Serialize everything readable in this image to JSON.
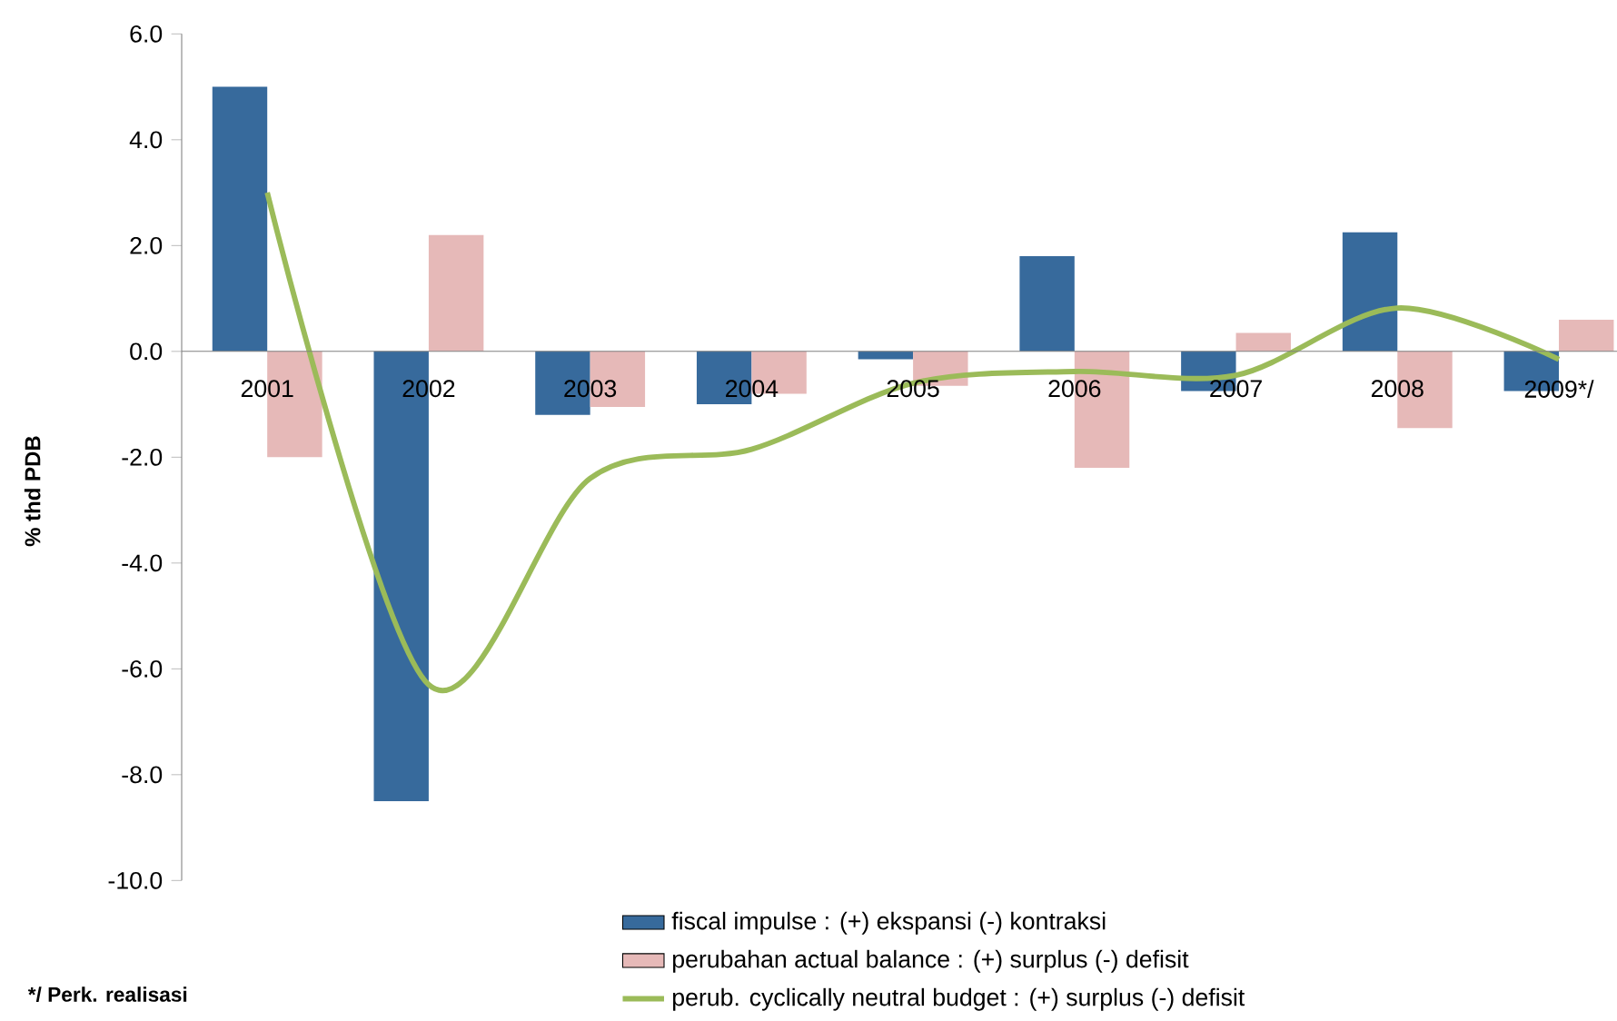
{
  "chart_data": {
    "type": "bar",
    "categories": [
      "2001",
      "2002",
      "2003",
      "2004",
      "2005",
      "2006",
      "2007",
      "2008",
      "2009*/"
    ],
    "series": [
      {
        "name": "fiscal impulse : (+) ekspansi (-) kontraksi",
        "color": "#376a9c",
        "values": [
          5.0,
          -8.5,
          -1.2,
          -1.0,
          -0.15,
          1.8,
          -0.75,
          2.25,
          -0.75
        ]
      },
      {
        "name": "perubahan actual balance : (+) surplus (-) defisit",
        "color": "#e6b9b8",
        "values": [
          -2.0,
          2.2,
          -1.05,
          -0.8,
          -0.65,
          -2.2,
          0.35,
          -1.45,
          0.6
        ]
      },
      {
        "name": "perub. cyclically neutral  budget : (+) surplus (-) defisit",
        "type": "line",
        "color": "#9bbb59",
        "values": [
          3.0,
          -6.3,
          -2.4,
          -1.85,
          -0.6,
          -0.38,
          -0.45,
          0.82,
          -0.15
        ]
      }
    ],
    "ylabel": "% thd PDB",
    "ylim": [
      -10,
      6
    ],
    "yticks": [
      {
        "value": -10,
        "label": "-10.0"
      },
      {
        "value": -8,
        "label": "-8.0"
      },
      {
        "value": -6,
        "label": "-6.0"
      },
      {
        "value": -4,
        "label": "-4.0"
      },
      {
        "value": -2,
        "label": "-2.0"
      },
      {
        "value": 0,
        "label": "0.0"
      },
      {
        "value": 2,
        "label": "2.0"
      },
      {
        "value": 4,
        "label": "4.0"
      },
      {
        "value": 6,
        "label": "6.0"
      }
    ],
    "legend": "bottom",
    "annotations": [
      "*/ Perk. realisasi"
    ]
  }
}
